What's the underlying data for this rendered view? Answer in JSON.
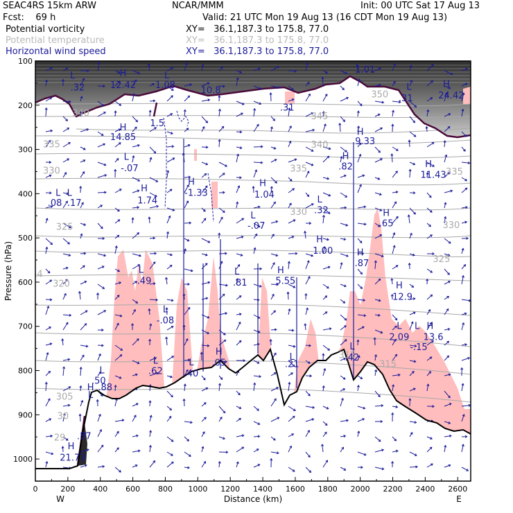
{
  "header": {
    "model": "SEAC4RS 15km ARW",
    "org": "NCAR/MMM",
    "init": "Init: 00 UTC Sat 17 Aug 13",
    "fcst": "Fcst:    69 h",
    "valid": "Valid: 21 UTC Mon 19 Aug 13 (16 CDT Mon 19 Aug 13)",
    "fields": [
      {
        "name": "Potential vorticity",
        "xy": "XY=   36.1,187.3 to 175.8, 77.0",
        "color": "#000000"
      },
      {
        "name": "Potential temperature",
        "xy": "XY=   36.1,187.3 to 175.8, 77.0",
        "color": "#b8b8b8"
      },
      {
        "name": "Horizontal wind speed",
        "xy": "XY=   36.1,187.3 to 175.8, 77.0",
        "color": "#1a1a9a"
      }
    ]
  },
  "chart_data": {
    "type": "cross-section",
    "xlabel": "Distance (km)",
    "ylabel": "Pressure (hPa)",
    "xlim": [
      0,
      2680
    ],
    "ylim": [
      1050,
      100
    ],
    "x_ticks": [
      0,
      200,
      400,
      600,
      800,
      1000,
      1200,
      1400,
      1600,
      1800,
      2000,
      2200,
      2400,
      2600
    ],
    "y_ticks": [
      100,
      200,
      300,
      400,
      500,
      600,
      700,
      800,
      900,
      1000
    ],
    "west_label": "W",
    "east_label": "E",
    "colors": {
      "pv_contour": "#4a0a3a",
      "theta": "#a8a8a8",
      "wind_labels": "#1a1a9a",
      "terrain_line": "#000000",
      "rh_fill": "#ffbdbd"
    },
    "theta_labels": [
      {
        "text": "350",
        "x": 2120,
        "p": 182
      },
      {
        "text": "345",
        "x": 1750,
        "p": 232
      },
      {
        "text": "340",
        "x": 280,
        "p": 225
      },
      {
        "text": "340",
        "x": 1750,
        "p": 296
      },
      {
        "text": "335",
        "x": 100,
        "p": 295
      },
      {
        "text": "335",
        "x": 1620,
        "p": 350
      },
      {
        "text": "335",
        "x": 2580,
        "p": 357
      },
      {
        "text": "330",
        "x": 100,
        "p": 355
      },
      {
        "text": "330",
        "x": 1620,
        "p": 448
      },
      {
        "text": "330",
        "x": 2560,
        "p": 478
      },
      {
        "text": "325",
        "x": 180,
        "p": 482
      },
      {
        "text": "325",
        "x": 2500,
        "p": 555
      },
      {
        "text": "320",
        "x": 160,
        "p": 610
      },
      {
        "text": "315",
        "x": 1920,
        "p": 772
      },
      {
        "text": "315",
        "x": 2170,
        "p": 792
      },
      {
        "text": "305",
        "x": 180,
        "p": 866
      },
      {
        "text": "30",
        "x": 170,
        "p": 910
      },
      {
        "text": "29",
        "x": 150,
        "p": 958
      },
      {
        "text": "54",
        "x": 10,
        "p": 588
      }
    ],
    "wind_labels": [
      {
        "text": "H",
        "x": 540,
        "p": 134
      },
      {
        "text": "12.42",
        "x": 540,
        "p": 161
      },
      {
        "text": "L",
        "x": 230,
        "p": 140
      },
      {
        "text": ".32",
        "x": 260,
        "p": 167
      },
      {
        "text": "L",
        "x": 810,
        "p": 140
      },
      {
        "text": "1.08",
        "x": 800,
        "p": 161
      },
      {
        "text": "10.8",
        "x": 1080,
        "p": 173
      },
      {
        "text": "1.5",
        "x": 750,
        "p": 247
      },
      {
        "text": "1.01",
        "x": 2030,
        "p": 126
      },
      {
        "text": "L",
        "x": 2300,
        "p": 165
      },
      {
        "text": ".31",
        "x": 2280,
        "p": 191
      },
      {
        "text": "H",
        "x": 2530,
        "p": 159
      },
      {
        "text": "24.42",
        "x": 2560,
        "p": 185
      },
      {
        "text": ".31",
        "x": 1550,
        "p": 212
      },
      {
        "text": "H",
        "x": 540,
        "p": 257
      },
      {
        "text": "14.85",
        "x": 540,
        "p": 279
      },
      {
        "text": "H",
        "x": 2000,
        "p": 267
      },
      {
        "text": "9.33",
        "x": 2030,
        "p": 288
      },
      {
        "text": "L",
        "x": 560,
        "p": 323
      },
      {
        "text": "-.07",
        "x": 580,
        "p": 349
      },
      {
        "text": "H",
        "x": 1910,
        "p": 322
      },
      {
        "text": ".82",
        "x": 1910,
        "p": 345
      },
      {
        "text": "H",
        "x": 2420,
        "p": 340
      },
      {
        "text": "11.43",
        "x": 2450,
        "p": 364
      },
      {
        "text": "H",
        "x": 960,
        "p": 380
      },
      {
        "text": "-1.33",
        "x": 990,
        "p": 405
      },
      {
        "text": "H",
        "x": 670,
        "p": 395
      },
      {
        "text": "1.74",
        "x": 690,
        "p": 422
      },
      {
        "text": "L",
        "x": 140,
        "p": 405
      },
      {
        "text": "L",
        "x": 210,
        "p": 405
      },
      {
        "text": ".08",
        "x": 120,
        "p": 428
      },
      {
        "text": ".17",
        "x": 240,
        "p": 428
      },
      {
        "text": "H",
        "x": 1400,
        "p": 383
      },
      {
        "text": "1.04",
        "x": 1410,
        "p": 409
      },
      {
        "text": "L",
        "x": 1750,
        "p": 420
      },
      {
        "text": ".32",
        "x": 1760,
        "p": 444
      },
      {
        "text": "H",
        "x": 2160,
        "p": 450
      },
      {
        "text": ".65",
        "x": 2160,
        "p": 474
      },
      {
        "text": "L",
        "x": 1340,
        "p": 456
      },
      {
        "text": "-.07",
        "x": 1360,
        "p": 479
      },
      {
        "text": "H",
        "x": 1750,
        "p": 510
      },
      {
        "text": "1.00",
        "x": 1770,
        "p": 536
      },
      {
        "text": "H",
        "x": 2000,
        "p": 540
      },
      {
        "text": ".87",
        "x": 2010,
        "p": 564
      },
      {
        "text": "L",
        "x": 1240,
        "p": 583
      },
      {
        "text": ".81",
        "x": 1260,
        "p": 608
      },
      {
        "text": "H",
        "x": 1510,
        "p": 580
      },
      {
        "text": "5.55",
        "x": 1540,
        "p": 604
      },
      {
        "text": "L",
        "x": 650,
        "p": 579
      },
      {
        "text": "-.49",
        "x": 660,
        "p": 604
      },
      {
        "text": "H",
        "x": 2240,
        "p": 614
      },
      {
        "text": "12.9",
        "x": 2260,
        "p": 640
      },
      {
        "text": "L",
        "x": 800,
        "p": 668
      },
      {
        "text": "-.08",
        "x": 800,
        "p": 693
      },
      {
        "text": "L",
        "x": 2240,
        "p": 706
      },
      {
        "text": "2.09",
        "x": 2240,
        "p": 731
      },
      {
        "text": "L",
        "x": 2350,
        "p": 706
      },
      {
        "text": "H",
        "x": 2430,
        "p": 706
      },
      {
        "text": "13.6",
        "x": 2450,
        "p": 731
      },
      {
        "text": "-.15",
        "x": 2360,
        "p": 754
      },
      {
        "text": "L",
        "x": 1950,
        "p": 752
      },
      {
        "text": ".42",
        "x": 1950,
        "p": 777
      },
      {
        "text": "H",
        "x": 1130,
        "p": 764
      },
      {
        "text": ".05",
        "x": 1130,
        "p": 789
      },
      {
        "text": "L",
        "x": 960,
        "p": 788
      },
      {
        "text": ".40",
        "x": 960,
        "p": 813
      },
      {
        "text": "L",
        "x": 740,
        "p": 784
      },
      {
        "text": ".62",
        "x": 740,
        "p": 808
      },
      {
        "text": "L",
        "x": 1580,
        "p": 776
      },
      {
        "text": ".21",
        "x": 1580,
        "p": 792
      },
      {
        "text": "L",
        "x": 410,
        "p": 806
      },
      {
        "text": ".50",
        "x": 390,
        "p": 830
      },
      {
        "text": ".88",
        "x": 430,
        "p": 845
      },
      {
        "text": "H",
        "x": 340,
        "p": 845
      },
      {
        "text": "L",
        "x": 340,
        "p": 862
      },
      {
        "text": ".57",
        "x": 300,
        "p": 955
      },
      {
        "text": "H",
        "x": 220,
        "p": 978
      },
      {
        "text": "21.73",
        "x": 230,
        "p": 1004
      }
    ]
  }
}
